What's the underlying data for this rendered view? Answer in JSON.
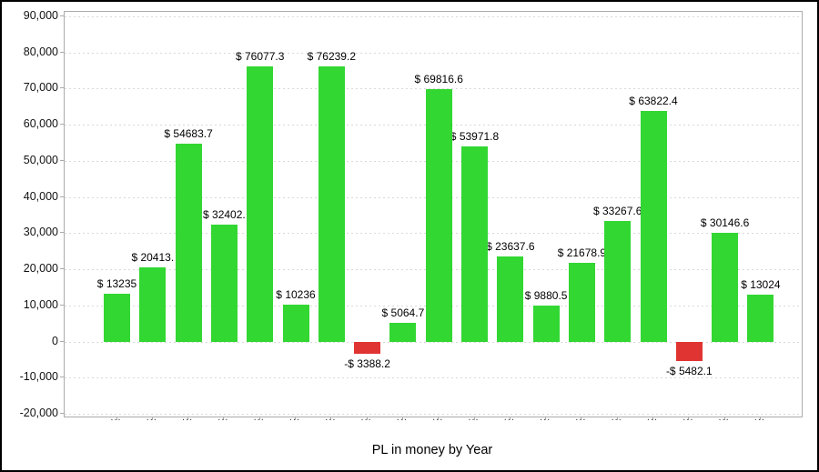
{
  "chart_data": {
    "type": "bar",
    "title": "PL in money by Year",
    "xlabel": "PL in money by Year",
    "ylabel": "",
    "legend": "none",
    "grid": "horizontal-dashed",
    "ylim": [
      -20750,
      91260
    ],
    "categories": [
      "...",
      "...",
      "...",
      "...",
      "...",
      "...",
      "...",
      "...",
      "...",
      "...",
      "...",
      "...",
      "...",
      "...",
      "...",
      "...",
      "...",
      "...",
      "..."
    ],
    "values": [
      13235,
      20413,
      54683.7,
      32402,
      76077.3,
      10236,
      76239.2,
      -3388.2,
      5064.7,
      69816.6,
      53971.8,
      23637.6,
      9880.5,
      21678.9,
      33267.6,
      63822.4,
      -5482.1,
      30146.6,
      13024
    ],
    "bar_labels": [
      "$ 13235",
      "$ 20413.",
      "$ 54683.7",
      "$ 32402.",
      "$ 76077.3",
      "$ 10236",
      "$ 76239.2",
      "-$ 3388.2",
      "$ 5064.7",
      "$ 69816.6",
      "$ 53971.8",
      "$ 23637.6",
      "$ 9880.5",
      "$ 21678.9",
      "$ 33267.6",
      "$ 63822.4",
      "-$ 5482.1",
      "$ 30146.6",
      "$ 13024"
    ],
    "y_ticks": [
      {
        "value": 90000,
        "label": "90,000"
      },
      {
        "value": 80000,
        "label": "80,000"
      },
      {
        "value": 70000,
        "label": "70,000"
      },
      {
        "value": 60000,
        "label": "60,000"
      },
      {
        "value": 50000,
        "label": "50,000"
      },
      {
        "value": 40000,
        "label": "40,000"
      },
      {
        "value": 30000,
        "label": "30,000"
      },
      {
        "value": 20000,
        "label": "20,000"
      },
      {
        "value": 10000,
        "label": "10,000"
      },
      {
        "value": 0,
        "label": "0"
      },
      {
        "value": -10000,
        "label": "-10,000"
      },
      {
        "value": -20000,
        "label": "-20,000"
      }
    ],
    "colors": {
      "positive_bar": "#32d732",
      "negative_bar": "#e03432",
      "gridline": "#d9d9d9",
      "axis_border": "#ababab",
      "text": "#000000",
      "background": "#ffffff",
      "frame_border": "#000000"
    }
  }
}
